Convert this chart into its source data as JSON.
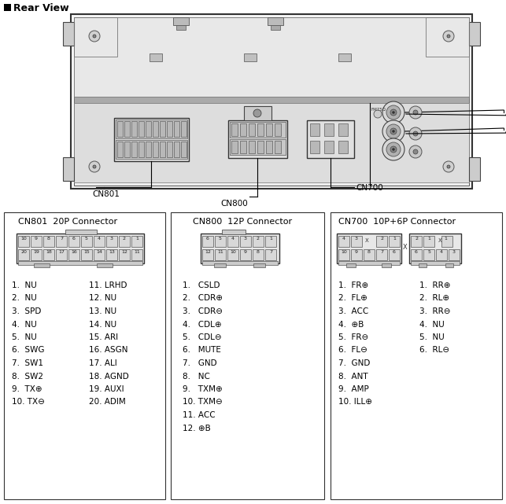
{
  "title": "Rear View",
  "background": "#ffffff",
  "cn801": {
    "title": "CN801  20P Connector",
    "pins_left": [
      "1.  NU",
      "2.  NU",
      "3.  SPD",
      "4.  NU",
      "5.  NU",
      "6.  SWG",
      "7.  SW1",
      "8.  SW2",
      "9.  TX⊕",
      "10. TX⊖"
    ],
    "pins_right": [
      "11. LRHD",
      "12. NU",
      "13. NU",
      "14. NU",
      "15. ARI",
      "16. ASGN",
      "17. ALI",
      "18. AGND",
      "19. AUXI",
      "20. ADIM"
    ]
  },
  "cn800": {
    "title": "CN800  12P Connector",
    "pins": [
      "1.   CSLD",
      "2.   CDR⊕",
      "3.   CDR⊖",
      "4.   CDL⊕",
      "5.   CDL⊖",
      "6.   MUTE",
      "7.   GND",
      "8.   NC",
      "9.   TXM⊕",
      "10. TXM⊖",
      "11. ACC",
      "12. ⊕B"
    ]
  },
  "cn700": {
    "title": "CN700  10P+6P Connector",
    "pins_left": [
      "1.  FR⊕",
      "2.  FL⊕",
      "3.  ACC",
      "4.  ⊕B",
      "5.  FR⊖",
      "6.  FL⊖",
      "7.  GND",
      "8.  ANT",
      "9.  AMP",
      "10. ILL⊕"
    ],
    "pins_right": [
      "1.  RR⊕",
      "2.  RL⊕",
      "3.  RR⊖",
      "4.  NU",
      "5.  NU",
      "6.  RL⊖"
    ]
  },
  "fig_w": 6.43,
  "fig_h": 6.41,
  "dpi": 100
}
